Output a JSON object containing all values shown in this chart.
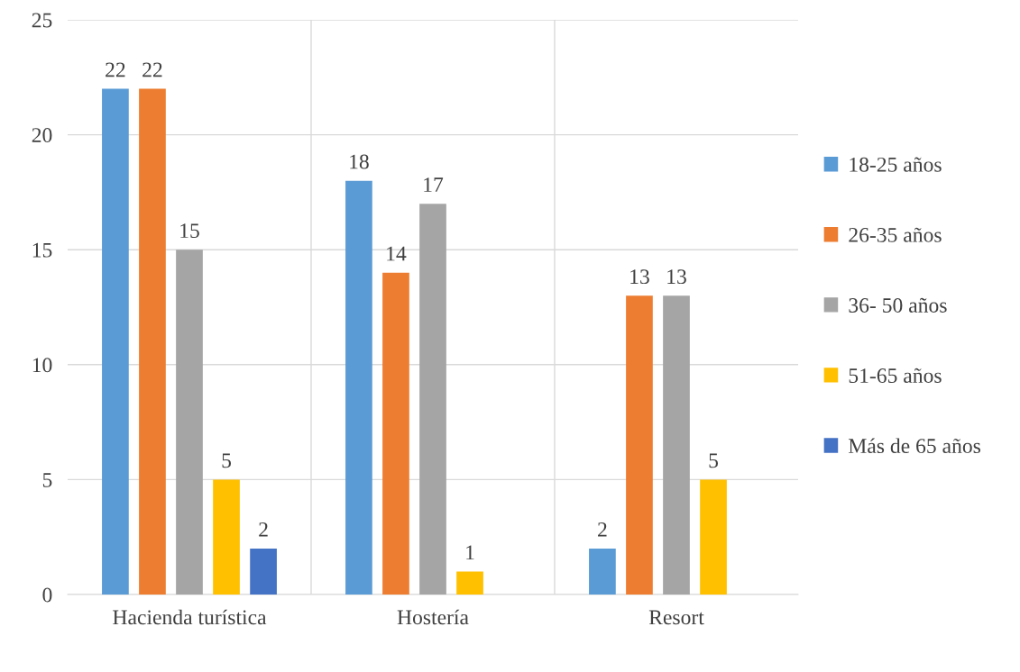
{
  "chart_data": {
    "type": "bar",
    "categories": [
      "Hacienda turística",
      "Hostería",
      "Resort"
    ],
    "series": [
      {
        "name": "18-25 años",
        "color": "#5b9bd5",
        "values": [
          22,
          18,
          2
        ]
      },
      {
        "name": "26-35 años",
        "color": "#ed7d31",
        "values": [
          22,
          14,
          13
        ]
      },
      {
        "name": "36- 50 años",
        "color": "#a5a5a5",
        "values": [
          15,
          17,
          13
        ]
      },
      {
        "name": "51-65 años",
        "color": "#ffc000",
        "values": [
          5,
          1,
          5
        ]
      },
      {
        "name": "Más de 65 años",
        "color": "#4472c4",
        "values": [
          2,
          null,
          null
        ]
      }
    ],
    "ylim": [
      0,
      25
    ],
    "yticks": [
      0,
      5,
      10,
      15,
      20,
      25
    ],
    "grid": true,
    "legend": "right",
    "data_labels": true
  }
}
